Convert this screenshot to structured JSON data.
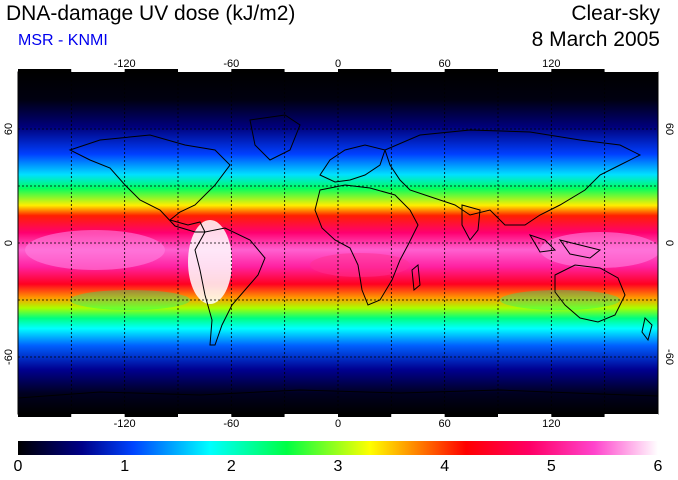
{
  "header": {
    "title": "DNA-damage UV dose (kJ/m2)",
    "subtitle": "MSR - KNMI",
    "condition": "Clear-sky",
    "date": "8 March 2005"
  },
  "map": {
    "lon_ticks": [
      "-120",
      "-60",
      "0",
      "60",
      "120"
    ],
    "lat_ticks_left": [
      "60",
      "0",
      "-60"
    ],
    "lat_ticks_right": [
      "60",
      "0",
      "-60"
    ],
    "lon_range": [
      -180,
      180
    ],
    "lat_range": [
      -90,
      90
    ],
    "grid": true,
    "gridlines_lon": [
      -150,
      -120,
      -90,
      -60,
      -30,
      0,
      30,
      60,
      90,
      120,
      150
    ],
    "gridlines_lat": [
      -60,
      -30,
      0,
      30,
      60
    ]
  },
  "colorbar": {
    "labels": [
      "0",
      "1",
      "2",
      "3",
      "4",
      "5",
      "6"
    ],
    "min": 0,
    "max": 6,
    "colors": [
      "#000000",
      "#000088",
      "#0044ff",
      "#00ffff",
      "#00ff44",
      "#ffff00",
      "#ff8800",
      "#ff0000",
      "#ff0066",
      "#ff44cc",
      "#ffffff"
    ]
  }
}
